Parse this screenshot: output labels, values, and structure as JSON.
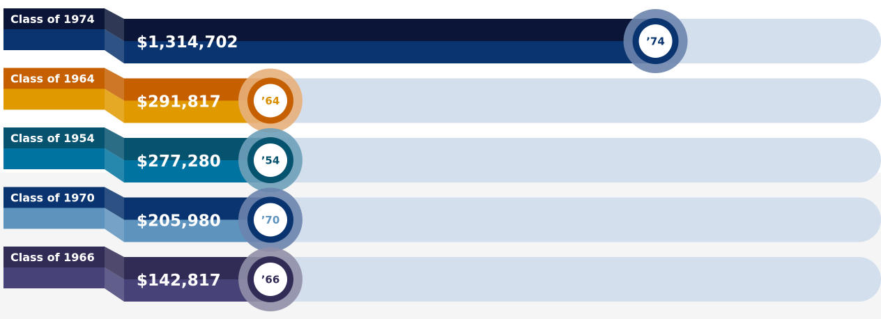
{
  "chart_data": {
    "type": "bar",
    "orientation": "horizontal",
    "title": "",
    "xlabel": "",
    "ylabel": "",
    "xlim": [
      0,
      1500000
    ],
    "legend": "none",
    "grid": false,
    "rows": [
      {
        "category": "Class of 1974",
        "value": 1314702,
        "value_label": "$1,314,702",
        "badge": "’74",
        "colors": {
          "tab_top": "#0b1537",
          "tab_bottom": "#0a3470",
          "bar_top": "#0b1537",
          "bar_bottom": "#0a3470",
          "ring": "#6b84ad",
          "ring_inner": "#0a3470",
          "badge_text": "#0a3470"
        }
      },
      {
        "category": "Class of 1964",
        "value": 291817,
        "value_label": "$291,817",
        "badge": "’64",
        "colors": {
          "tab_top": "#c55f00",
          "tab_bottom": "#e09a00",
          "bar_top": "#c55f00",
          "bar_bottom": "#e09a00",
          "ring": "#e7b07b",
          "ring_inner": "#c55f00",
          "badge_text": "#d88f00"
        }
      },
      {
        "category": "Class of 1954",
        "value": 277280,
        "value_label": "$277,280",
        "badge": "’54",
        "colors": {
          "tab_top": "#06536f",
          "tab_bottom": "#0173a0",
          "bar_top": "#06536f",
          "bar_bottom": "#0173a0",
          "ring": "#6fa0b9",
          "ring_inner": "#06536f",
          "badge_text": "#06536f"
        }
      },
      {
        "category": "Class of 1970",
        "value": 205980,
        "value_label": "$205,980",
        "badge": "’70",
        "colors": {
          "tab_top": "#0a3470",
          "tab_bottom": "#5e93bd",
          "bar_top": "#0a3470",
          "bar_bottom": "#5e93bd",
          "ring": "#6b84ad",
          "ring_inner": "#0a3470",
          "badge_text": "#5e93bd"
        }
      },
      {
        "category": "Class of 1966",
        "value": 142817,
        "value_label": "$142,817",
        "badge": "’66",
        "colors": {
          "tab_top": "#312c55",
          "tab_bottom": "#474379",
          "bar_top": "#312c55",
          "bar_bottom": "#474379",
          "ring": "#908fa8",
          "ring_inner": "#312c55",
          "badge_text": "#312c55"
        }
      }
    ],
    "colors": {
      "track": "#d4dfee",
      "background_band": "#f5f5f5"
    }
  }
}
